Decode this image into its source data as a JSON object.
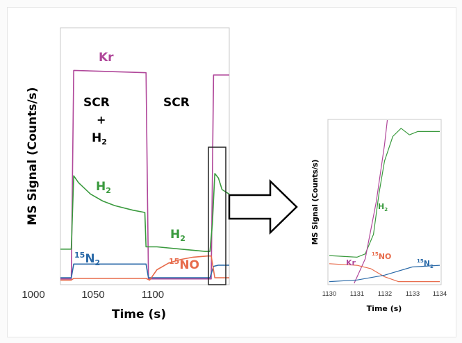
{
  "chart_data": [
    {
      "type": "line",
      "xlabel": "Time (s)",
      "ylabel": "MS Signal (Counts/s)",
      "xlim": [
        1000,
        1140
      ],
      "ylim": [
        0,
        100
      ],
      "x_ticks": [
        "1000",
        "1050",
        "1100"
      ],
      "regions": [
        {
          "label_lines": [
            "SCR",
            "+",
            "H"
          ],
          "subscript": "2"
        },
        {
          "label_lines": [
            "SCR"
          ]
        }
      ],
      "series": [
        {
          "name": "Kr",
          "color": "#b0479a",
          "x": [
            1000,
            1009,
            1011,
            1071,
            1073,
            1125,
            1127,
            1131,
            1140
          ],
          "y": [
            1,
            1,
            92,
            91,
            1,
            1,
            90,
            90,
            90
          ]
        },
        {
          "name": "H",
          "subscript": "2",
          "color": "#3a9a3e",
          "x": [
            1000,
            1009,
            1011,
            1015,
            1025,
            1035,
            1045,
            1060,
            1070,
            1071,
            1073,
            1080,
            1100,
            1120,
            1124,
            1126,
            1128,
            1131,
            1134,
            1140
          ],
          "y": [
            14,
            14,
            46,
            43,
            38,
            35,
            33,
            31,
            30,
            15,
            15,
            15,
            14,
            13,
            13,
            25,
            47,
            45,
            40,
            38
          ]
        },
        {
          "name": "15N",
          "sup": "15",
          "base": "N",
          "subscript": "2",
          "color": "#2b6aa8",
          "x": [
            1000,
            1009,
            1011,
            1071,
            1073,
            1124,
            1127,
            1131,
            1140
          ],
          "y": [
            1.5,
            1.5,
            7.5,
            7.5,
            1.5,
            1.5,
            6.5,
            7,
            7
          ]
        },
        {
          "name": "15NO",
          "sup": "15",
          "base": "NO",
          "color": "#e76b4b",
          "x": [
            1000,
            1009,
            1011,
            1071,
            1074,
            1080,
            1090,
            1100,
            1110,
            1122,
            1125,
            1128,
            1140
          ],
          "y": [
            0.5,
            0.5,
            1.2,
            1.2,
            0.5,
            5,
            8,
            9.5,
            10.5,
            11,
            11,
            1.5,
            1.5
          ]
        }
      ],
      "annotations": [
        {
          "text": "Kr",
          "color": "#b0479a"
        },
        {
          "text": "H",
          "sub": "2",
          "color": "#3a9a3e"
        },
        {
          "text": "H",
          "sub": "2",
          "color": "#3a9a3e"
        },
        {
          "sup": "15",
          "text": "N",
          "sub": "2",
          "color": "#2b6aa8"
        },
        {
          "sup": "15",
          "text": "NO",
          "color": "#e76b4b"
        }
      ]
    },
    {
      "type": "line",
      "xlabel": "Time (s)",
      "ylabel": "MS Signal (Counts/s)",
      "xlim": [
        1130,
        1134
      ],
      "x_ticks": [
        "1130",
        "1131",
        "1132",
        "1133",
        "1134"
      ],
      "series": [
        {
          "name": "H",
          "subscript": "2",
          "color": "#3a9a3e",
          "x": [
            1130,
            1131,
            1131.3,
            1131.6,
            1131.8,
            1132.0,
            1132.3,
            1132.6,
            1132.9,
            1133.2,
            1133.6,
            1134
          ],
          "y": [
            17,
            16,
            18,
            30,
            55,
            75,
            90,
            95,
            91,
            93,
            93,
            93
          ]
        },
        {
          "name": "Kr",
          "color": "#b0479a",
          "x": [
            1130.9,
            1131.3,
            1131.7,
            1132.0,
            1132.1
          ],
          "y": [
            0,
            15,
            50,
            85,
            100
          ]
        },
        {
          "name": "15NO",
          "sup": "15",
          "base": "NO",
          "color": "#e76b4b",
          "x": [
            1130,
            1131,
            1131.5,
            1132.0,
            1132.5,
            1133,
            1134
          ],
          "y": [
            12,
            11,
            9,
            4,
            1,
            1,
            1
          ]
        },
        {
          "name": "15N",
          "sup": "15",
          "base": "N",
          "subscript": "2",
          "color": "#2b6aa8",
          "x": [
            1130,
            1131,
            1132,
            1133,
            1134
          ],
          "y": [
            1,
            2,
            5,
            10,
            11
          ]
        }
      ],
      "annotations": [
        {
          "text": "H",
          "sub": "2",
          "color": "#3a9a3e"
        },
        {
          "text": "Kr",
          "color": "#b0479a"
        },
        {
          "sup": "15",
          "text": "NO",
          "color": "#e76b4b"
        },
        {
          "sup": "15",
          "text": "N",
          "sub": "2",
          "color": "#2b6aa8"
        }
      ]
    }
  ],
  "arrow": {
    "color": "#000000",
    "fill": "#ffffff"
  }
}
